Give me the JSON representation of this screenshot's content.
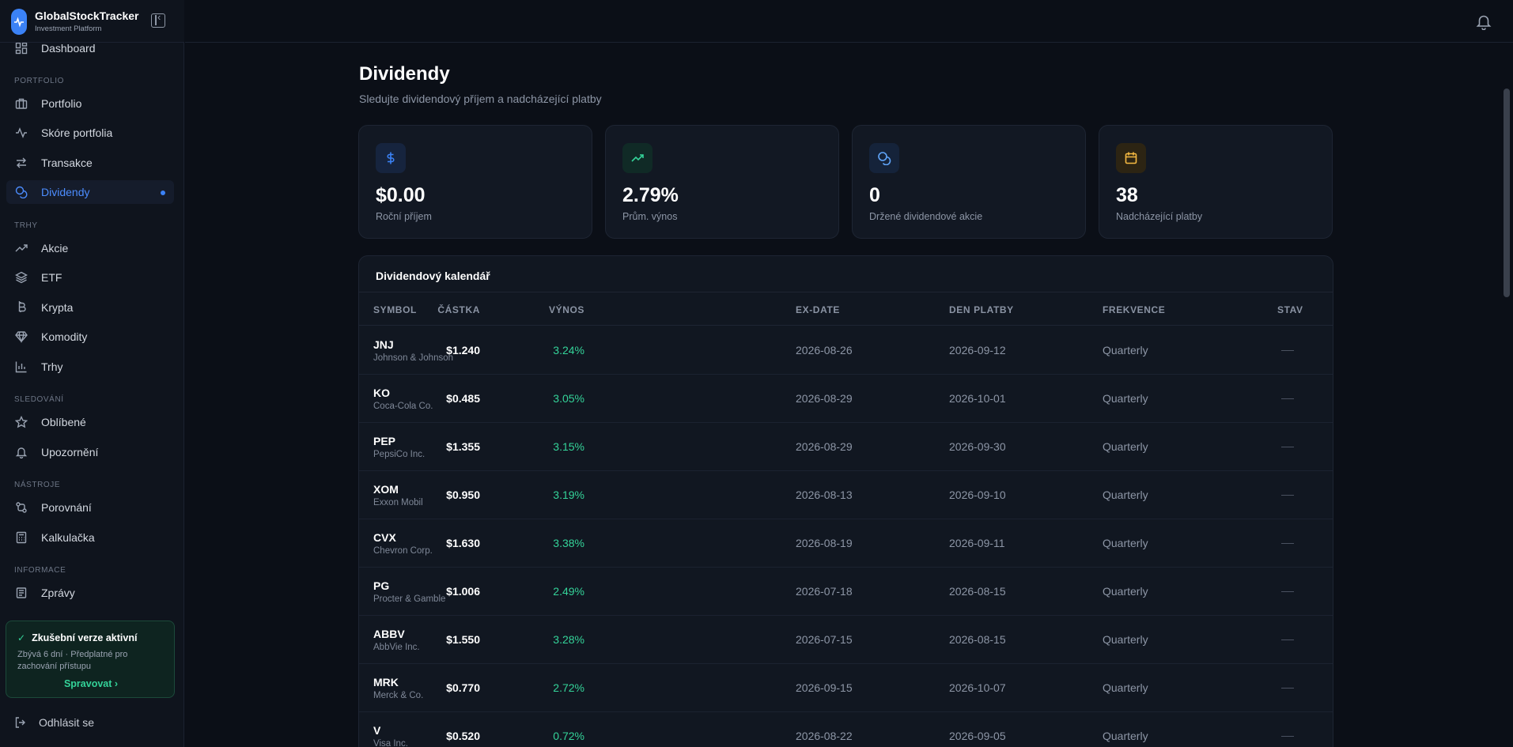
{
  "brand": {
    "name": "GlobalStockTracker",
    "subtitle": "Investment Platform"
  },
  "sidebar": {
    "dashboard": "Dashboard",
    "sections": {
      "portfolio": "PORTFOLIO",
      "markets": "TRHY",
      "watching": "SLEDOVÁNÍ",
      "tools": "NÁSTROJE",
      "info": "INFORMACE"
    },
    "items": {
      "portfolio": "Portfolio",
      "score": "Skóre portfolia",
      "transactions": "Transakce",
      "dividends": "Dividendy",
      "stocks": "Akcie",
      "etf": "ETF",
      "crypto": "Krypta",
      "commodities": "Komodity",
      "markets": "Trhy",
      "favorites": "Oblíbené",
      "alerts": "Upozornění",
      "compare": "Porovnání",
      "calculator": "Kalkulačka",
      "news": "Zprávy"
    },
    "trial": {
      "title": "Zkušební verze aktivní",
      "text": "Zbývá 6 dní · Předplatné pro zachování přístupu",
      "link": "Spravovat ›"
    },
    "logout": "Odhlásit se"
  },
  "page": {
    "title": "Dividendy",
    "subtitle": "Sledujte dividendový příjem a nadcházející platby"
  },
  "stats": [
    {
      "icon": "dollar-icon",
      "value": "$0.00",
      "label": "Roční příjem",
      "color": "#3b82f6"
    },
    {
      "icon": "trending-up-icon",
      "value": "2.79%",
      "label": "Prům. výnos",
      "color": "#34d399"
    },
    {
      "icon": "coins-icon",
      "value": "0",
      "label": "Držené dividendové akcie",
      "color": "#60a5fa"
    },
    {
      "icon": "calendar-icon",
      "value": "38",
      "label": "Nadcházející platby",
      "color": "#f5b942"
    }
  ],
  "table": {
    "title": "Dividendový kalendář",
    "headers": {
      "symbol": "SYMBOL",
      "amount": "ČÁSTKA",
      "yield": "VÝNOS",
      "ex_date": "EX-DATE",
      "pay_date": "DEN PLATBY",
      "frequency": "FREKVENCE",
      "status": "STAV"
    },
    "rows": [
      {
        "symbol": "JNJ",
        "name": "Johnson & Johnson",
        "amount": "$1.240",
        "yield": "3.24%",
        "ex_date": "2026-08-26",
        "pay_date": "2026-09-12",
        "frequency": "Quarterly"
      },
      {
        "symbol": "KO",
        "name": "Coca-Cola Co.",
        "amount": "$0.485",
        "yield": "3.05%",
        "ex_date": "2026-08-29",
        "pay_date": "2026-10-01",
        "frequency": "Quarterly"
      },
      {
        "symbol": "PEP",
        "name": "PepsiCo Inc.",
        "amount": "$1.355",
        "yield": "3.15%",
        "ex_date": "2026-08-29",
        "pay_date": "2026-09-30",
        "frequency": "Quarterly"
      },
      {
        "symbol": "XOM",
        "name": "Exxon Mobil",
        "amount": "$0.950",
        "yield": "3.19%",
        "ex_date": "2026-08-13",
        "pay_date": "2026-09-10",
        "frequency": "Quarterly"
      },
      {
        "symbol": "CVX",
        "name": "Chevron Corp.",
        "amount": "$1.630",
        "yield": "3.38%",
        "ex_date": "2026-08-19",
        "pay_date": "2026-09-11",
        "frequency": "Quarterly"
      },
      {
        "symbol": "PG",
        "name": "Procter & Gamble",
        "amount": "$1.006",
        "yield": "2.49%",
        "ex_date": "2026-07-18",
        "pay_date": "2026-08-15",
        "frequency": "Quarterly"
      },
      {
        "symbol": "ABBV",
        "name": "AbbVie Inc.",
        "amount": "$1.550",
        "yield": "3.28%",
        "ex_date": "2026-07-15",
        "pay_date": "2026-08-15",
        "frequency": "Quarterly"
      },
      {
        "symbol": "MRK",
        "name": "Merck & Co.",
        "amount": "$0.770",
        "yield": "2.72%",
        "ex_date": "2026-09-15",
        "pay_date": "2026-10-07",
        "frequency": "Quarterly"
      },
      {
        "symbol": "V",
        "name": "Visa Inc.",
        "amount": "$0.520",
        "yield": "0.72%",
        "ex_date": "2026-08-22",
        "pay_date": "2026-09-05",
        "frequency": "Quarterly"
      }
    ]
  }
}
